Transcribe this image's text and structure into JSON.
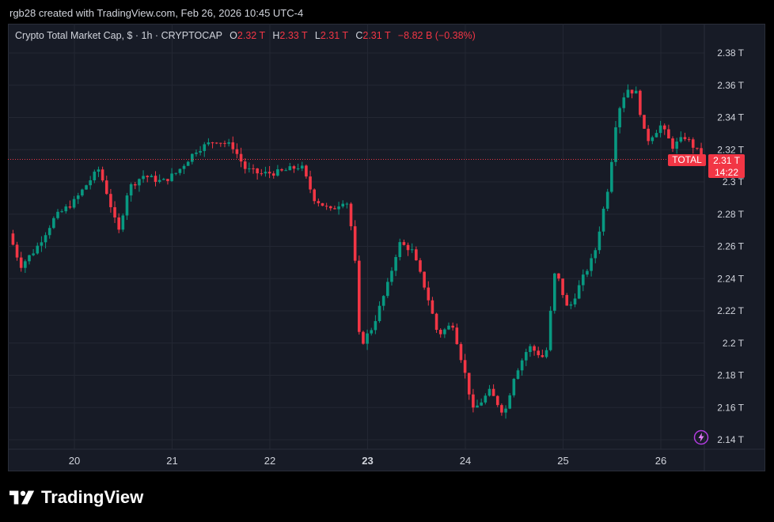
{
  "credit": "rgb28 created with TradingView.com, Feb 26, 2026 10:45 UTC-4",
  "legend": {
    "title": "Crypto Total Market Cap, $ · 1h · CRYPTOCAP",
    "o_label": "O",
    "o_value": "2.32 T",
    "h_label": "H",
    "h_value": "2.33 T",
    "l_label": "L",
    "l_value": "2.31 T",
    "c_label": "C",
    "c_value": "2.31 T",
    "change": "−8.82 B (−0.38%)"
  },
  "price_tag": {
    "symbol": "TOTAL",
    "price": "2.31 T",
    "countdown": "14:22"
  },
  "brand": "TradingView",
  "colors": {
    "up": "#089981",
    "down": "#f23645",
    "background": "#171b26",
    "grid": "#232733",
    "text": "#d1d4dc",
    "last_price_line": "#f23645"
  },
  "chart_data": {
    "type": "candlestick",
    "symbol": "CRYPTOCAP:TOTAL",
    "interval": "1h",
    "unit": "T",
    "ylim": [
      2.132,
      2.408
    ],
    "y_ticks": [
      2.14,
      2.16,
      2.18,
      2.2,
      2.22,
      2.24,
      2.26,
      2.28,
      2.3,
      2.32,
      2.34,
      2.36,
      2.38
    ],
    "y_tick_labels": [
      "2.14 T",
      "2.16 T",
      "2.18 T",
      "2.2 T",
      "2.22 T",
      "2.24 T",
      "2.26 T",
      "2.28 T",
      "2.3 T",
      "2.32 T",
      "2.34 T",
      "2.36 T",
      "2.38 T"
    ],
    "x_ticks": [
      {
        "label": "20",
        "day": 20
      },
      {
        "label": "21",
        "day": 21
      },
      {
        "label": "22",
        "day": 22
      },
      {
        "label": "23",
        "day": 23,
        "bold": true
      },
      {
        "label": "24",
        "day": 24
      },
      {
        "label": "25",
        "day": 25
      },
      {
        "label": "26",
        "day": 26
      }
    ],
    "last_price": 2.314,
    "waypoints": [
      [
        19.33,
        2.268
      ],
      [
        19.45,
        2.248
      ],
      [
        19.6,
        2.258
      ],
      [
        19.8,
        2.278
      ],
      [
        20.0,
        2.288
      ],
      [
        20.12,
        2.298
      ],
      [
        20.25,
        2.308
      ],
      [
        20.35,
        2.29
      ],
      [
        20.45,
        2.268
      ],
      [
        20.55,
        2.296
      ],
      [
        20.7,
        2.304
      ],
      [
        20.9,
        2.3
      ],
      [
        21.05,
        2.306
      ],
      [
        21.25,
        2.32
      ],
      [
        21.45,
        2.326
      ],
      [
        21.62,
        2.322
      ],
      [
        21.75,
        2.308
      ],
      [
        21.9,
        2.305
      ],
      [
        22.1,
        2.306
      ],
      [
        22.32,
        2.31
      ],
      [
        22.45,
        2.29
      ],
      [
        22.62,
        2.282
      ],
      [
        22.78,
        2.29
      ],
      [
        22.86,
        2.262
      ],
      [
        22.92,
        2.198
      ],
      [
        23.05,
        2.21
      ],
      [
        23.2,
        2.235
      ],
      [
        23.32,
        2.262
      ],
      [
        23.45,
        2.258
      ],
      [
        23.6,
        2.232
      ],
      [
        23.72,
        2.205
      ],
      [
        23.87,
        2.212
      ],
      [
        24.0,
        2.18
      ],
      [
        24.08,
        2.158
      ],
      [
        24.25,
        2.17
      ],
      [
        24.4,
        2.156
      ],
      [
        24.5,
        2.18
      ],
      [
        24.65,
        2.198
      ],
      [
        24.82,
        2.19
      ],
      [
        24.92,
        2.246
      ],
      [
        25.05,
        2.22
      ],
      [
        25.2,
        2.24
      ],
      [
        25.32,
        2.255
      ],
      [
        25.47,
        2.3
      ],
      [
        25.55,
        2.342
      ],
      [
        25.65,
        2.358
      ],
      [
        25.75,
        2.355
      ],
      [
        25.85,
        2.325
      ],
      [
        26.0,
        2.335
      ],
      [
        26.12,
        2.322
      ],
      [
        26.25,
        2.328
      ],
      [
        26.36,
        2.32
      ],
      [
        26.43,
        2.315
      ]
    ]
  }
}
